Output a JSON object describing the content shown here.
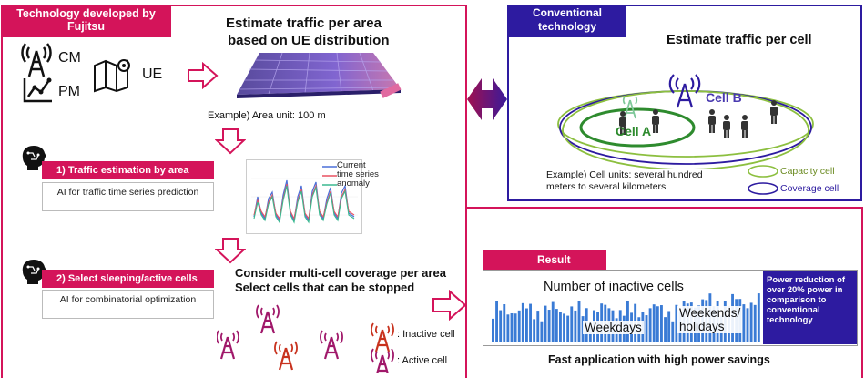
{
  "fujitsu": {
    "tab_label": "Technology developed by Fujitsu",
    "cm_label": "CM",
    "pm_label": "PM",
    "ue_label": "UE",
    "title_line1": "Estimate traffic per area",
    "title_line2": "based on UE distribution",
    "example_area": "Example) Area unit: 100 m",
    "step1": {
      "label": "1) Traffic estimation by area",
      "sub": "AI for traffic time series prediction"
    },
    "legend": {
      "current": "Current",
      "time_series": "time series",
      "anomaly": "anomaly"
    },
    "step2": {
      "label": "2) Select sleeping/active cells",
      "sub": "AI for combinatorial optimization"
    },
    "consider_line1": "Consider multi-cell coverage per area",
    "consider_line2": "Select cells that can be stopped",
    "inactive_cell": ": Inactive cell",
    "active_cell": ": Active cell"
  },
  "conventional": {
    "tab_label": "Conventional technology",
    "title": "Estimate traffic per cell",
    "cell_a": "Cell A",
    "cell_b": "Cell B",
    "example_line1": "Example) Cell units: several hundred",
    "example_line2": "meters to several kilometers",
    "capacity_cell": "Capacity cell",
    "coverage_cell": "Coverage cell"
  },
  "result": {
    "tab_label": "Result",
    "chart_title": "Number of inactive cells",
    "weekdays": "Weekdays",
    "weekends_line1": "Weekends/",
    "weekends_line2": "holidays",
    "power_text": "Power reduction of over 20% power in comparison to conventional technology",
    "fast": "Fast application with high power savings"
  },
  "colors": {
    "accent": "#d4145a",
    "conventional": "#2d1ba0",
    "bars": "#3a7bd5",
    "cell_a": "#2e8b2e",
    "capacity": "#8cbf3f"
  }
}
